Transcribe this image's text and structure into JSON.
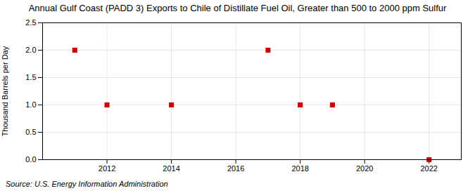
{
  "chart_data": {
    "type": "scatter",
    "title": "Annual Gulf Coast (PADD 3) Exports to Chile of Distillate Fuel Oil, Greater than 500 to 2000 ppm Sulfur",
    "ylabel": "Thousand Barrels per Day",
    "caption": "Source: U.S. Energy Information Administration",
    "x": [
      2011,
      2012,
      2014,
      2017,
      2018,
      2019,
      2022
    ],
    "values": [
      2.0,
      1.0,
      1.0,
      2.0,
      1.0,
      1.0,
      0.0
    ],
    "color": "#cc0000",
    "marker": "square",
    "xlim": [
      2010,
      2023
    ],
    "ylim": [
      0.0,
      2.5
    ],
    "xticks": [
      2012,
      2014,
      2016,
      2018,
      2020,
      2022
    ],
    "yticks": [
      {
        "value": 0,
        "label": "0.0"
      },
      0.5,
      {
        "value": 1,
        "label": "1.0"
      },
      1.5,
      {
        "value": 2,
        "label": "2.0"
      },
      2.5
    ],
    "grid": true
  }
}
